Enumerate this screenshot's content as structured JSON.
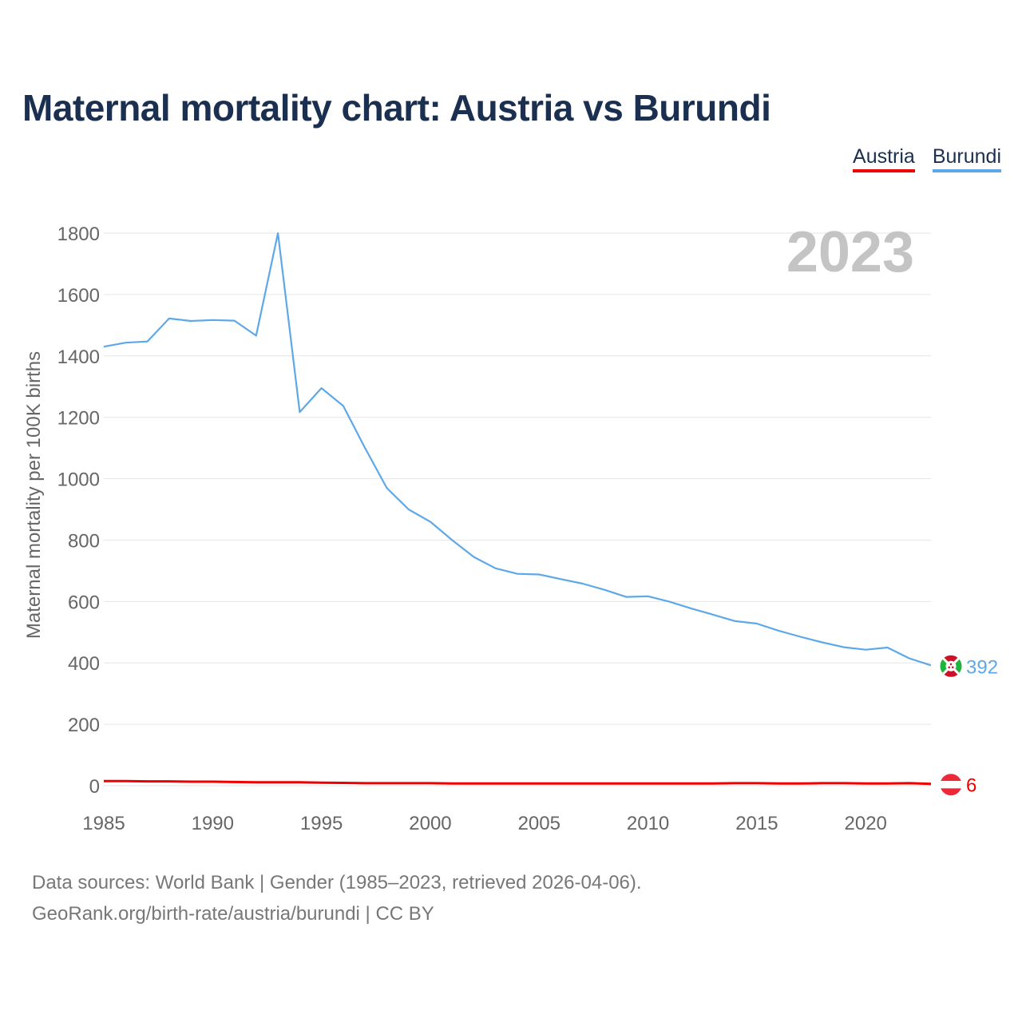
{
  "title": "Maternal mortality chart: Austria vs Burundi",
  "legend": {
    "austria": "Austria",
    "burundi": "Burundi"
  },
  "colors": {
    "austria": "#ee0000",
    "burundi": "#5ea8e8",
    "title": "#1b3050",
    "axis_text": "#666666",
    "grid": "#e6e6e6",
    "year_watermark": "#c4c4c4"
  },
  "footer": {
    "sources": "Data sources: World Bank | Gender (1985–2023, retrieved 2026-04-06).",
    "link": "GeoRank.org/birth-rate/austria/burundi",
    "license": " | CC BY"
  },
  "chart_data": {
    "type": "line",
    "title": "Maternal mortality chart: Austria vs Burundi",
    "ylabel": "Maternal mortality per 100K births",
    "xlabel": "",
    "year_label": "2023",
    "xlim": [
      1985,
      2023
    ],
    "ylim": [
      0,
      1800
    ],
    "x_ticks": [
      1985,
      1990,
      1995,
      2000,
      2005,
      2010,
      2015,
      2020
    ],
    "y_ticks": [
      0,
      200,
      400,
      600,
      800,
      1000,
      1200,
      1400,
      1600,
      1800
    ],
    "grid": true,
    "x": [
      1985,
      1986,
      1987,
      1988,
      1989,
      1990,
      1991,
      1992,
      1993,
      1994,
      1995,
      1996,
      1997,
      1998,
      1999,
      2000,
      2001,
      2002,
      2003,
      2004,
      2005,
      2006,
      2007,
      2008,
      2009,
      2010,
      2011,
      2012,
      2013,
      2014,
      2015,
      2016,
      2017,
      2018,
      2019,
      2020,
      2021,
      2022,
      2023
    ],
    "series": [
      {
        "name": "Burundi",
        "color": "#5ea8e8",
        "end_label": "392",
        "values": [
          1430,
          1443,
          1447,
          1522,
          1514,
          1517,
          1515,
          1466,
          1800,
          1217,
          1295,
          1237,
          1100,
          970,
          900,
          860,
          800,
          745,
          708,
          690,
          688,
          673,
          658,
          638,
          615,
          617,
          599,
          577,
          557,
          536,
          528,
          505,
          485,
          467,
          451,
          443,
          450,
          415,
          392
        ]
      },
      {
        "name": "Austria",
        "color": "#ee0000",
        "end_label": "6",
        "values": [
          15,
          15,
          14,
          14,
          13,
          13,
          12,
          11,
          11,
          11,
          10,
          9,
          8,
          8,
          8,
          8,
          7,
          7,
          7,
          7,
          7,
          7,
          7,
          7,
          7,
          7,
          7,
          7,
          7,
          8,
          8,
          7,
          7,
          8,
          8,
          7,
          7,
          8,
          6
        ]
      }
    ]
  }
}
